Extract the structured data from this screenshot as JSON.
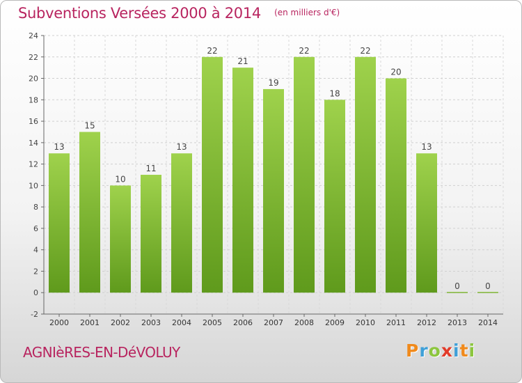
{
  "title": "Subventions Versées 2000 à 2014",
  "unit_note": "(en milliers d'€)",
  "place_name": "AGNIèRES-EN-DéVOLUY",
  "logo": {
    "letters": [
      {
        "ch": "P",
        "color": "#f08a1c"
      },
      {
        "ch": "r",
        "color": "#3fa0d8"
      },
      {
        "ch": "o",
        "color": "#8cc63e"
      },
      {
        "ch": "x",
        "color": "#e23b2a"
      },
      {
        "ch": "i",
        "color": "#3fa0d8"
      },
      {
        "ch": "t",
        "color": "#f08a1c"
      },
      {
        "ch": "i",
        "color": "#8cc63e"
      }
    ]
  },
  "chart_data": {
    "type": "bar",
    "categories": [
      "2000",
      "2001",
      "2002",
      "2003",
      "2004",
      "2005",
      "2006",
      "2007",
      "2008",
      "2009",
      "2010",
      "2011",
      "2012",
      "2013",
      "2014"
    ],
    "values": [
      13,
      15,
      10,
      11,
      13,
      22,
      21,
      19,
      22,
      18,
      22,
      20,
      13,
      0,
      0
    ],
    "ylim": [
      -2,
      24
    ],
    "yticks": [
      -2,
      0,
      2,
      4,
      6,
      8,
      10,
      12,
      14,
      16,
      18,
      20,
      22,
      24
    ],
    "grid": true,
    "bar_color": "#7cb82f",
    "bar_color_light": "#9fd24c",
    "bar_color_dark": "#5f9a1c"
  }
}
